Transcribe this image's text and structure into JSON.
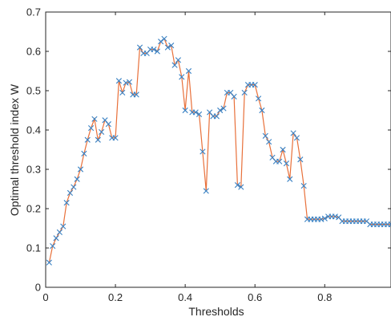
{
  "chart_data": {
    "type": "line",
    "title": "",
    "xlabel": "Thresholds",
    "ylabel": "Optimal threshold index W",
    "xlim": [
      0,
      0.99
    ],
    "ylim": [
      0,
      0.7
    ],
    "xticks": [
      0,
      0.2,
      0.4,
      0.6,
      0.8
    ],
    "xtick_labels": [
      "0",
      "0.2",
      "0.4",
      "0.6",
      "0.8"
    ],
    "yticks": [
      0,
      0.1,
      0.2,
      0.3,
      0.4,
      0.5,
      0.6,
      0.7
    ],
    "ytick_labels": [
      "0",
      "0.1",
      "0.2",
      "0.3",
      "0.4",
      "0.5",
      "0.6",
      "0.7"
    ],
    "grid": false,
    "line_color": "#e8703a",
    "marker_color": "#3a82c4",
    "marker": "x",
    "x": [
      0.01,
      0.02,
      0.03,
      0.04,
      0.05,
      0.06,
      0.07,
      0.08,
      0.09,
      0.1,
      0.11,
      0.12,
      0.13,
      0.14,
      0.15,
      0.16,
      0.17,
      0.18,
      0.19,
      0.2,
      0.21,
      0.22,
      0.23,
      0.24,
      0.25,
      0.26,
      0.27,
      0.28,
      0.29,
      0.3,
      0.31,
      0.32,
      0.33,
      0.34,
      0.35,
      0.36,
      0.37,
      0.38,
      0.39,
      0.4,
      0.41,
      0.42,
      0.43,
      0.44,
      0.45,
      0.46,
      0.47,
      0.48,
      0.49,
      0.5,
      0.51,
      0.52,
      0.53,
      0.54,
      0.55,
      0.56,
      0.57,
      0.58,
      0.59,
      0.6,
      0.61,
      0.62,
      0.63,
      0.64,
      0.65,
      0.66,
      0.67,
      0.68,
      0.69,
      0.7,
      0.71,
      0.72,
      0.73,
      0.74,
      0.75,
      0.76,
      0.77,
      0.78,
      0.79,
      0.8,
      0.81,
      0.82,
      0.83,
      0.84,
      0.85,
      0.86,
      0.87,
      0.88,
      0.89,
      0.9,
      0.91,
      0.92,
      0.93,
      0.94,
      0.95,
      0.96,
      0.97,
      0.98,
      0.99
    ],
    "y": [
      0.063,
      0.105,
      0.125,
      0.14,
      0.155,
      0.215,
      0.24,
      0.255,
      0.275,
      0.3,
      0.34,
      0.375,
      0.405,
      0.428,
      0.375,
      0.395,
      0.425,
      0.415,
      0.38,
      0.38,
      0.525,
      0.495,
      0.52,
      0.522,
      0.49,
      0.49,
      0.61,
      0.595,
      0.595,
      0.605,
      0.605,
      0.6,
      0.625,
      0.632,
      0.61,
      0.615,
      0.565,
      0.578,
      0.535,
      0.45,
      0.55,
      0.445,
      0.445,
      0.44,
      0.345,
      0.245,
      0.445,
      0.435,
      0.435,
      0.45,
      0.455,
      0.495,
      0.495,
      0.485,
      0.26,
      0.255,
      0.495,
      0.515,
      0.515,
      0.515,
      0.48,
      0.45,
      0.385,
      0.37,
      0.33,
      0.32,
      0.32,
      0.35,
      0.315,
      0.275,
      0.392,
      0.38,
      0.325,
      0.258,
      0.173,
      0.173,
      0.173,
      0.173,
      0.173,
      0.175,
      0.18,
      0.18,
      0.18,
      0.178,
      0.168,
      0.168,
      0.168,
      0.168,
      0.168,
      0.168,
      0.168,
      0.168,
      0.16,
      0.16,
      0.16,
      0.16,
      0.16,
      0.16,
      0.16
    ]
  }
}
